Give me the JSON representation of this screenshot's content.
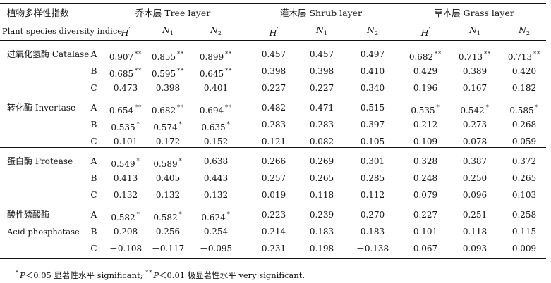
{
  "header": {
    "index_cn": "植物多样性指数",
    "index_en": "Plant species diversity indice",
    "groups": [
      "乔木层 Tree layer",
      "灌木层 Shrub layer",
      "草本层 Grass layer"
    ],
    "metrics": [
      {
        "base": "H",
        "sup": "′",
        "sub": ""
      },
      {
        "base": "N",
        "sup": "",
        "sub": "1"
      },
      {
        "base": "N",
        "sup": "",
        "sub": "2"
      }
    ]
  },
  "enzymes": [
    {
      "label": "过氧化氢酶 Catalase",
      "label2": "",
      "rows": [
        {
          "grp": "A",
          "vals": [
            "0.907",
            "0.855",
            "0.899",
            "0.457",
            "0.457",
            "0.497",
            "0.682",
            "0.713",
            "0.713"
          ],
          "stars": [
            "**",
            "**",
            "**",
            "",
            "",
            "",
            "**",
            "**",
            "**"
          ]
        },
        {
          "grp": "B",
          "vals": [
            "0.685",
            "0.595",
            "0.645",
            "0.398",
            "0.398",
            "0.410",
            "0.429",
            "0.389",
            "0.420"
          ],
          "stars": [
            "**",
            "**",
            "**",
            "",
            "",
            "",
            "",
            "",
            ""
          ]
        },
        {
          "grp": "C",
          "vals": [
            "0.473",
            "0.398",
            "0.401",
            "0.227",
            "0.227",
            "0.340",
            "0.196",
            "0.167",
            "0.182"
          ],
          "stars": [
            "",
            "",
            "",
            "",
            "",
            "",
            "",
            "",
            ""
          ]
        }
      ]
    },
    {
      "label": "转化酶 Invertase",
      "label2": "",
      "rows": [
        {
          "grp": "A",
          "vals": [
            "0.654",
            "0.682",
            "0.694",
            "0.482",
            "0.471",
            "0.515",
            "0.535",
            "0.542",
            "0.585"
          ],
          "stars": [
            "**",
            "**",
            "**",
            "",
            "",
            "",
            "*",
            "*",
            "*"
          ]
        },
        {
          "grp": "B",
          "vals": [
            "0.535",
            "0.574",
            "0.635",
            "0.283",
            "0.283",
            "0.397",
            "0.212",
            "0.273",
            "0.268"
          ],
          "stars": [
            "*",
            "*",
            "*",
            "",
            "",
            "",
            "",
            "",
            ""
          ]
        },
        {
          "grp": "C",
          "vals": [
            "0.101",
            "0.172",
            "0.152",
            "0.121",
            "0.082",
            "0.105",
            "0.109",
            "0.078",
            "0.059"
          ],
          "stars": [
            "",
            "",
            "",
            "",
            "",
            "",
            "",
            "",
            ""
          ]
        }
      ]
    },
    {
      "label": "蛋白酶 Protease",
      "label2": "",
      "rows": [
        {
          "grp": "A",
          "vals": [
            "0.549",
            "0.589",
            "0.638",
            "0.266",
            "0.269",
            "0.301",
            "0.328",
            "0.387",
            "0.372"
          ],
          "stars": [
            "*",
            "*",
            "",
            "",
            "",
            "",
            "",
            "",
            ""
          ]
        },
        {
          "grp": "B",
          "vals": [
            "0.413",
            "0.405",
            "0.443",
            "0.257",
            "0.265",
            "0.285",
            "0.248",
            "0.250",
            "0.265"
          ],
          "stars": [
            "",
            "",
            "",
            "",
            "",
            "",
            "",
            "",
            ""
          ]
        },
        {
          "grp": "C",
          "vals": [
            "0.132",
            "0.132",
            "0.132",
            "0.019",
            "0.118",
            "0.112",
            "0.079",
            "0.096",
            "0.103"
          ],
          "stars": [
            "",
            "",
            "",
            "",
            "",
            "",
            "",
            "",
            ""
          ]
        }
      ]
    },
    {
      "label": "酸性磷酸酶",
      "label2": "Acid phosphatase",
      "rows": [
        {
          "grp": "A",
          "vals": [
            "0.582",
            "0.582",
            "0.624",
            "0.223",
            "0.239",
            "0.270",
            "0.227",
            "0.251",
            "0.258"
          ],
          "stars": [
            "*",
            "*",
            "*",
            "",
            "",
            "",
            "",
            "",
            ""
          ]
        },
        {
          "grp": "B",
          "vals": [
            "0.208",
            "0.256",
            "0.254",
            "0.214",
            "0.183",
            "0.183",
            "0.101",
            "0.118",
            "0.115"
          ],
          "stars": [
            "",
            "",
            "",
            "",
            "",
            "",
            "",
            "",
            ""
          ]
        },
        {
          "grp": "C",
          "vals": [
            "－0.108",
            "－0.117",
            "－0.095",
            "0.231",
            "0.198",
            "－0.138",
            "0.067",
            "0.093",
            "0.009"
          ],
          "stars": [
            "",
            "",
            "",
            "",
            "",
            "",
            "",
            "",
            ""
          ]
        }
      ]
    }
  ],
  "footnote": {
    "star1": "*",
    "p1": "P",
    "text1": "＜0.05 显著性水平 significant;",
    "star2": "**",
    "p2": "P",
    "text2": "＜0.01 极显著性水平 very significant."
  }
}
